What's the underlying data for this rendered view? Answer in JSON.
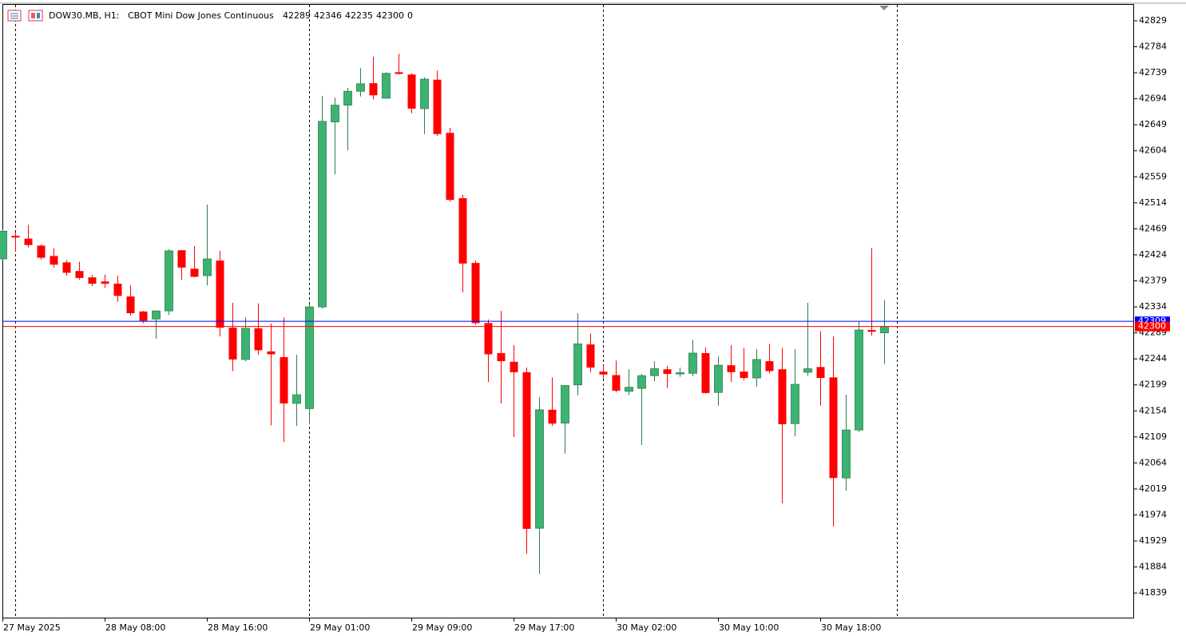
{
  "chart_data": {
    "type": "candlestick",
    "title": "DOW30.MB, H1:",
    "subtitle": "CBOT Mini Dow Jones Continuous",
    "header_values": [
      42289,
      42346,
      42235,
      42300,
      0
    ],
    "categories": [
      "27 May 2025",
      null,
      null,
      null,
      null,
      null,
      null,
      null,
      "28 May 08:00",
      null,
      null,
      null,
      null,
      null,
      null,
      null,
      "28 May 16:00",
      null,
      null,
      null,
      null,
      null,
      null,
      null,
      "29 May 01:00",
      null,
      null,
      null,
      null,
      null,
      null,
      null,
      "29 May 09:00",
      null,
      null,
      null,
      null,
      null,
      null,
      null,
      "29 May 17:00",
      null,
      null,
      null,
      null,
      null,
      null,
      null,
      "30 May 02:00",
      null,
      null,
      null,
      null,
      null,
      null,
      null,
      "30 May 10:00",
      null,
      null,
      null,
      null,
      null,
      null,
      null,
      "30 May 18:00",
      null,
      null,
      null,
      null,
      null
    ],
    "open": [
      42417,
      42457,
      42452,
      42440,
      42422,
      42411,
      42396,
      42385,
      42378,
      42374,
      42352,
      42326,
      42313,
      42327,
      42432,
      42400,
      42388,
      42414,
      42298,
      42243,
      42297,
      42257,
      42247,
      42167,
      42158,
      42334,
      42654,
      42683,
      42707,
      42721,
      42695,
      42740,
      42736,
      42677,
      42727,
      42635,
      42522,
      42410,
      42306,
      42254,
      42239,
      42221,
      41951,
      42156,
      42133,
      42199,
      42269,
      42222,
      42216,
      42188,
      42193,
      42215,
      42226,
      42218,
      42219,
      42254,
      42186,
      42233,
      42222,
      42211,
      42240,
      42226,
      42132,
      42221,
      42230,
      42212,
      42038,
      42121,
      42294,
      42289
    ],
    "high": [
      42468,
      42463,
      42476,
      42442,
      42435,
      42415,
      42412,
      42389,
      42390,
      42388,
      42371,
      42327,
      42328,
      42434,
      42432,
      42439,
      42511,
      42431,
      42341,
      42316,
      42340,
      42305,
      42316,
      42251,
      42339,
      42699,
      42696,
      42713,
      42747,
      42767,
      42740,
      42772,
      42738,
      42731,
      42743,
      42644,
      42528,
      42414,
      42312,
      42327,
      42268,
      42229,
      42178,
      42212,
      42198,
      42323,
      42288,
      42232,
      42241,
      42226,
      42218,
      42240,
      42232,
      42229,
      42277,
      42264,
      42248,
      42268,
      42263,
      42261,
      42270,
      42263,
      42261,
      42341,
      42292,
      42283,
      42182,
      42308,
      42436,
      42346
    ],
    "low": [
      42415,
      42430,
      42437,
      42416,
      42402,
      42388,
      42381,
      42370,
      42367,
      42343,
      42319,
      42306,
      42279,
      42320,
      42381,
      42385,
      42371,
      42283,
      42223,
      42240,
      42251,
      42129,
      42100,
      42128,
      42131,
      42331,
      42563,
      42605,
      42698,
      42693,
      42694,
      42736,
      42669,
      42633,
      42630,
      42516,
      42359,
      42303,
      42204,
      42167,
      42109,
      41907,
      41872,
      42128,
      42080,
      42181,
      42221,
      42210,
      42186,
      42181,
      42095,
      42205,
      42194,
      42213,
      42214,
      42184,
      42163,
      42204,
      42207,
      42196,
      42219,
      41994,
      42110,
      42215,
      42163,
      41954,
      42016,
      42118,
      42284,
      42235
    ],
    "close": [
      42465,
      42454,
      42441,
      42419,
      42407,
      42393,
      42384,
      42374,
      42374,
      42353,
      42323,
      42310,
      42327,
      42431,
      42402,
      42386,
      42417,
      42298,
      42243,
      42297,
      42259,
      42252,
      42167,
      42182,
      42334,
      42655,
      42683,
      42707,
      42720,
      42700,
      42738,
      42737,
      42677,
      42728,
      42633,
      42519,
      42409,
      42306,
      42252,
      42240,
      42221,
      41950,
      42156,
      42132,
      42198,
      42270,
      42229,
      42217,
      42189,
      42195,
      42215,
      42227,
      42218,
      42220,
      42254,
      42185,
      42233,
      42221,
      42211,
      42243,
      42223,
      42131,
      42200,
      42227,
      42211,
      42038,
      42121,
      42294,
      42291,
      42300
    ],
    "up_color": "#3cb371",
    "down_color": "#ff0000",
    "price_lines": [
      {
        "value": 42309,
        "color": "#0000ff"
      },
      {
        "value": 42300,
        "color": "#ff0000"
      }
    ],
    "ylim": [
      41795,
      42858
    ],
    "yticks": [
      42829,
      42784,
      42739,
      42694,
      42649,
      42604,
      42559,
      42514,
      42469,
      42424,
      42379,
      42334,
      42289,
      42244,
      42199,
      42154,
      42109,
      42064,
      42019,
      41974,
      41929,
      41884,
      41839
    ]
  }
}
